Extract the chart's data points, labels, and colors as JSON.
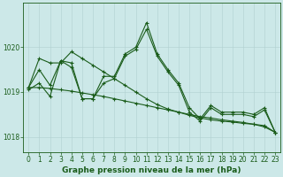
{
  "background_color": "#cce8e8",
  "plot_bg_color": "#cce8e8",
  "grid_color": "#b0d0d0",
  "line_color": "#1a5c1a",
  "marker": "+",
  "markersize": 3,
  "linewidth": 0.8,
  "xlabel": "Graphe pression niveau de la mer (hPa)",
  "xlabel_fontsize": 6.5,
  "xlabel_color": "#1a5c1a",
  "tick_fontsize": 5.5,
  "tick_color": "#1a5c1a",
  "ylim": [
    1017.65,
    1021.0
  ],
  "xlim": [
    -0.5,
    23.5
  ],
  "yticks": [
    1018,
    1019,
    1020
  ],
  "xticks": [
    0,
    1,
    2,
    3,
    4,
    5,
    6,
    7,
    8,
    9,
    10,
    11,
    12,
    13,
    14,
    15,
    16,
    17,
    18,
    19,
    20,
    21,
    22,
    23
  ],
  "line1": [
    1019.1,
    1019.5,
    1019.15,
    1019.7,
    1019.65,
    1018.85,
    1018.85,
    1019.35,
    1019.35,
    1019.85,
    1020.0,
    1020.55,
    1019.85,
    1019.5,
    1019.2,
    1018.65,
    1018.4,
    1018.7,
    1018.55,
    1018.55,
    1018.55,
    1018.5,
    1018.65,
    1018.1
  ],
  "line2": [
    1019.05,
    1019.2,
    1018.9,
    1019.7,
    1019.55,
    1018.85,
    1018.85,
    1019.2,
    1019.3,
    1019.8,
    1019.95,
    1020.4,
    1019.8,
    1019.45,
    1019.15,
    1018.55,
    1018.35,
    1018.65,
    1018.5,
    1018.5,
    1018.5,
    1018.45,
    1018.6,
    1018.1
  ],
  "line3": [
    1019.1,
    1019.75,
    1019.65,
    1019.65,
    1019.9,
    1019.75,
    1019.6,
    1019.45,
    1019.3,
    1019.15,
    1019.0,
    1018.85,
    1018.72,
    1018.62,
    1018.55,
    1018.48,
    1018.42,
    1018.38,
    1018.35,
    1018.33,
    1018.3,
    1018.28,
    1018.25,
    1018.1
  ],
  "line4": [
    1019.1,
    1019.1,
    1019.08,
    1019.05,
    1019.02,
    1018.98,
    1018.94,
    1018.9,
    1018.85,
    1018.8,
    1018.75,
    1018.7,
    1018.65,
    1018.6,
    1018.55,
    1018.5,
    1018.45,
    1018.42,
    1018.38,
    1018.35,
    1018.32,
    1018.28,
    1018.22,
    1018.1
  ]
}
